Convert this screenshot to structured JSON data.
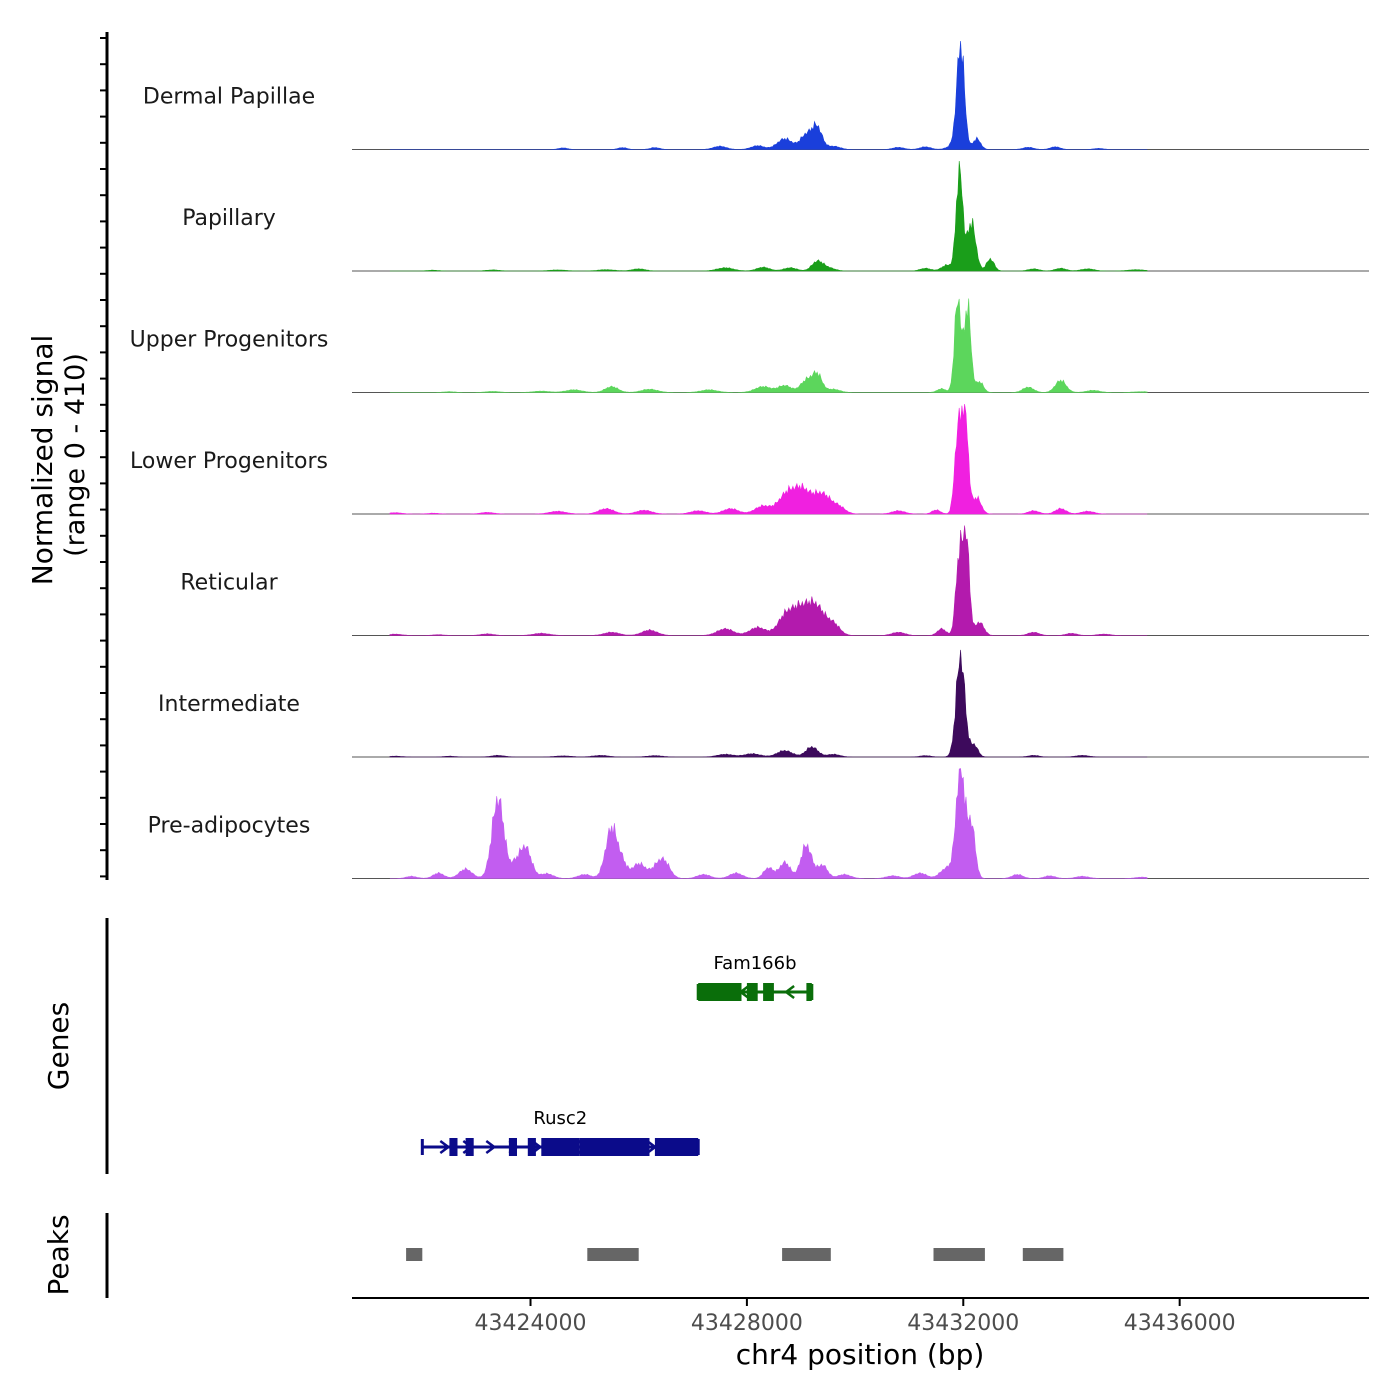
{
  "chart_data": {
    "type": "area",
    "title": "",
    "xlabel": "chr4 position (bp)",
    "ylabel": "Normalized signal",
    "ylabel_sub": "(range 0 - 410)",
    "xlim": [
      43420700,
      43439500
    ],
    "x_ticks": [
      43424000,
      43428000,
      43432000,
      43436000
    ],
    "x_tick_labels": [
      "43424000",
      "43428000",
      "43432000",
      "43436000"
    ],
    "ylim": [
      0,
      410
    ],
    "grid": false,
    "tracks": [
      {
        "name": "Dermal Papillae",
        "color": "#1a3fdb",
        "peaks": [
          [
            43424600,
            6,
            80
          ],
          [
            43425700,
            7,
            80
          ],
          [
            43426300,
            7,
            90
          ],
          [
            43427500,
            12,
            120
          ],
          [
            43428200,
            14,
            120
          ],
          [
            43428700,
            40,
            140
          ],
          [
            43429100,
            55,
            110
          ],
          [
            43429300,
            80,
            90
          ],
          [
            43429600,
            12,
            120
          ],
          [
            43430800,
            8,
            100
          ],
          [
            43431300,
            10,
            100
          ],
          [
            43431800,
            14,
            100
          ],
          [
            43431950,
            390,
            70
          ],
          [
            43432250,
            40,
            70
          ],
          [
            43433200,
            8,
            100
          ],
          [
            43433700,
            10,
            90
          ],
          [
            43434500,
            4,
            90
          ]
        ]
      },
      {
        "name": "Papillary",
        "color": "#1a9e1a",
        "peaks": [
          [
            43422200,
            3,
            100
          ],
          [
            43423300,
            4,
            120
          ],
          [
            43424500,
            4,
            150
          ],
          [
            43425400,
            5,
            150
          ],
          [
            43426000,
            8,
            120
          ],
          [
            43427600,
            12,
            150
          ],
          [
            43428300,
            14,
            120
          ],
          [
            43428800,
            12,
            120
          ],
          [
            43429300,
            35,
            100
          ],
          [
            43429500,
            12,
            120
          ],
          [
            43431300,
            10,
            100
          ],
          [
            43431700,
            22,
            100
          ],
          [
            43431930,
            380,
            60
          ],
          [
            43432150,
            180,
            80
          ],
          [
            43432500,
            45,
            70
          ],
          [
            43433300,
            8,
            100
          ],
          [
            43433800,
            10,
            100
          ],
          [
            43434300,
            8,
            120
          ],
          [
            43435200,
            5,
            150
          ]
        ]
      },
      {
        "name": "Upper Progenitors",
        "color": "#5cd65c",
        "peaks": [
          [
            43422500,
            3,
            100
          ],
          [
            43423300,
            4,
            120
          ],
          [
            43424200,
            5,
            150
          ],
          [
            43424800,
            10,
            150
          ],
          [
            43425500,
            22,
            120
          ],
          [
            43426200,
            12,
            150
          ],
          [
            43427300,
            10,
            150
          ],
          [
            43428300,
            22,
            150
          ],
          [
            43428700,
            26,
            120
          ],
          [
            43429100,
            45,
            110
          ],
          [
            43429300,
            65,
            90
          ],
          [
            43429600,
            12,
            120
          ],
          [
            43431600,
            14,
            80
          ],
          [
            43431900,
            350,
            60
          ],
          [
            43432080,
            320,
            60
          ],
          [
            43432300,
            40,
            70
          ],
          [
            43433200,
            20,
            100
          ],
          [
            43433800,
            45,
            100
          ],
          [
            43434400,
            8,
            120
          ],
          [
            43435300,
            3,
            150
          ]
        ]
      },
      {
        "name": "Lower Progenitors",
        "color": "#f020e0",
        "peaks": [
          [
            43421500,
            5,
            120
          ],
          [
            43422200,
            3,
            100
          ],
          [
            43423200,
            6,
            120
          ],
          [
            43424500,
            10,
            150
          ],
          [
            43425400,
            20,
            140
          ],
          [
            43426100,
            14,
            140
          ],
          [
            43427100,
            12,
            140
          ],
          [
            43427700,
            20,
            140
          ],
          [
            43428300,
            30,
            150
          ],
          [
            43428700,
            55,
            140
          ],
          [
            43429000,
            95,
            180
          ],
          [
            43429400,
            70,
            150
          ],
          [
            43429700,
            25,
            120
          ],
          [
            43430800,
            12,
            120
          ],
          [
            43431500,
            15,
            80
          ],
          [
            43431900,
            300,
            60
          ],
          [
            43432030,
            390,
            60
          ],
          [
            43432250,
            60,
            80
          ],
          [
            43433300,
            12,
            100
          ],
          [
            43433800,
            20,
            100
          ],
          [
            43434300,
            10,
            120
          ]
        ]
      },
      {
        "name": "Reticular",
        "color": "#b31aad",
        "peaks": [
          [
            43421500,
            5,
            120
          ],
          [
            43422300,
            3,
            100
          ],
          [
            43423200,
            6,
            120
          ],
          [
            43424200,
            8,
            150
          ],
          [
            43425500,
            12,
            140
          ],
          [
            43426200,
            20,
            140
          ],
          [
            43427600,
            25,
            150
          ],
          [
            43428200,
            30,
            150
          ],
          [
            43428700,
            60,
            140
          ],
          [
            43429000,
            100,
            180
          ],
          [
            43429300,
            90,
            150
          ],
          [
            43429600,
            40,
            120
          ],
          [
            43430800,
            12,
            120
          ],
          [
            43431600,
            25,
            80
          ],
          [
            43431920,
            280,
            60
          ],
          [
            43432050,
            380,
            60
          ],
          [
            43432300,
            50,
            80
          ],
          [
            43433300,
            12,
            100
          ],
          [
            43434000,
            8,
            100
          ],
          [
            43434600,
            5,
            120
          ]
        ]
      },
      {
        "name": "Intermediate",
        "color": "#3d0a5c",
        "peaks": [
          [
            43421500,
            3,
            120
          ],
          [
            43422500,
            3,
            100
          ],
          [
            43423400,
            6,
            120
          ],
          [
            43424600,
            4,
            150
          ],
          [
            43425300,
            6,
            140
          ],
          [
            43426300,
            5,
            140
          ],
          [
            43427600,
            10,
            150
          ],
          [
            43428100,
            12,
            150
          ],
          [
            43428700,
            24,
            140
          ],
          [
            43429200,
            38,
            110
          ],
          [
            43429600,
            10,
            120
          ],
          [
            43431300,
            5,
            100
          ],
          [
            43431950,
            380,
            80
          ],
          [
            43432200,
            45,
            70
          ],
          [
            43433300,
            6,
            100
          ],
          [
            43434200,
            6,
            120
          ]
        ]
      },
      {
        "name": "Pre-adipocytes",
        "color": "#c25df0",
        "peaks": [
          [
            43421800,
            8,
            100
          ],
          [
            43422300,
            20,
            100
          ],
          [
            43422800,
            35,
            120
          ],
          [
            43423400,
            300,
            110
          ],
          [
            43423700,
            40,
            80
          ],
          [
            43423900,
            120,
            110
          ],
          [
            43424300,
            18,
            120
          ],
          [
            43425000,
            15,
            120
          ],
          [
            43425500,
            190,
            110
          ],
          [
            43425700,
            45,
            80
          ],
          [
            43426000,
            55,
            130
          ],
          [
            43426400,
            60,
            130
          ],
          [
            43426500,
            20,
            100
          ],
          [
            43427200,
            15,
            120
          ],
          [
            43427800,
            20,
            120
          ],
          [
            43428400,
            40,
            90
          ],
          [
            43428700,
            60,
            100
          ],
          [
            43429100,
            125,
            100
          ],
          [
            43429400,
            50,
            90
          ],
          [
            43429800,
            15,
            120
          ],
          [
            43430700,
            10,
            120
          ],
          [
            43431200,
            20,
            120
          ],
          [
            43431700,
            40,
            120
          ],
          [
            43431950,
            420,
            80
          ],
          [
            43432150,
            200,
            70
          ],
          [
            43433000,
            15,
            100
          ],
          [
            43433600,
            10,
            100
          ],
          [
            43434200,
            8,
            120
          ],
          [
            43435300,
            5,
            120
          ]
        ]
      }
    ],
    "genes": [
      {
        "name": "Fam166b",
        "strand": "-",
        "color": "#0a6e0a",
        "start": 43427100,
        "end": 43429200,
        "exons": [
          [
            43427100,
            43427900
          ],
          [
            43428000,
            43428200
          ],
          [
            43428300,
            43428500
          ],
          [
            43429100,
            43429200
          ]
        ]
      },
      {
        "name": "Rusc2",
        "strand": "+",
        "color": "#0b0b8a",
        "start": 43422000,
        "end": 43427100,
        "exons": [
          [
            43422500,
            43422650
          ],
          [
            43422800,
            43422950
          ],
          [
            43423600,
            43423750
          ],
          [
            43423950,
            43424100
          ],
          [
            43424200,
            43424900
          ],
          [
            43424900,
            43425700
          ],
          [
            43425700,
            43426200
          ],
          [
            43426300,
            43427100
          ]
        ]
      }
    ],
    "peaks_track": {
      "label": "Peaks",
      "color": "#666666",
      "intervals": [
        [
          43421700,
          43422000
        ],
        [
          43425050,
          43426000
        ],
        [
          43428650,
          43429550
        ],
        [
          43431450,
          43432400
        ],
        [
          43433100,
          43433850
        ]
      ]
    },
    "genes_label": "Genes"
  }
}
